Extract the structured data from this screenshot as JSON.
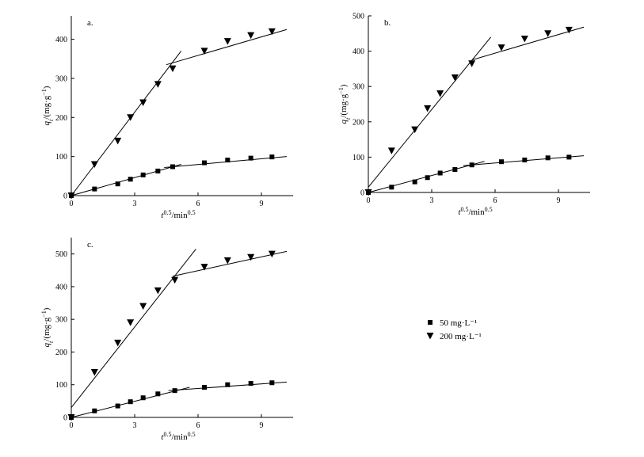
{
  "chart_data": [
    {
      "type": "scatter",
      "panel_label": "a.",
      "xlabel": {
        "main": "t",
        "sup": "0.5",
        "unit": "/min",
        "unit_sup": "0.5"
      },
      "ylabel": {
        "main": "q",
        "sub": "t",
        "unit": "/(mg·g",
        "unit_sup": "−1",
        "close": ")"
      },
      "xlim": [
        0,
        10.5
      ],
      "ylim": [
        0,
        460
      ],
      "xticks": [
        0,
        3,
        6,
        9
      ],
      "yticks": [
        0,
        100,
        200,
        300,
        400
      ],
      "series": [
        {
          "name": "50 mg·L⁻¹",
          "marker": "square",
          "x": [
            0,
            1.1,
            2.2,
            2.8,
            3.4,
            4.1,
            4.8,
            6.3,
            7.4,
            8.5,
            9.5
          ],
          "y": [
            0,
            17,
            30,
            42,
            53,
            63,
            74,
            84,
            91,
            96,
            99
          ],
          "fit_lines": [
            {
              "x": [
                0,
                5.2
              ],
              "y": [
                0,
                80
              ]
            },
            {
              "x": [
                4.4,
                10.2
              ],
              "y": [
                72,
                100
              ]
            }
          ]
        },
        {
          "name": "200 mg·L⁻¹",
          "marker": "triangle-down",
          "x": [
            0,
            1.1,
            2.2,
            2.8,
            3.4,
            4.1,
            4.8,
            6.3,
            7.4,
            8.5,
            9.5
          ],
          "y": [
            0,
            80,
            140,
            200,
            238,
            285,
            325,
            370,
            395,
            410,
            420
          ],
          "fit_lines": [
            {
              "x": [
                0,
                5.2
              ],
              "y": [
                0,
                370
              ]
            },
            {
              "x": [
                4.5,
                10.2
              ],
              "y": [
                335,
                425
              ]
            }
          ]
        }
      ]
    },
    {
      "type": "scatter",
      "panel_label": "b.",
      "xlabel": {
        "main": "t",
        "sup": "0.5",
        "unit": "/min",
        "unit_sup": "0.5"
      },
      "ylabel": {
        "main": "q",
        "sub": "t",
        "unit": "/(mg·g",
        "unit_sup": "−1",
        "close": ")"
      },
      "xlim": [
        0,
        10.5
      ],
      "ylim": [
        0,
        500
      ],
      "xticks": [
        0,
        3,
        6,
        9
      ],
      "yticks": [
        0,
        100,
        200,
        300,
        400,
        500
      ],
      "series": [
        {
          "name": "50 mg·L⁻¹",
          "marker": "square",
          "x": [
            0,
            1.1,
            2.2,
            2.8,
            3.4,
            4.1,
            4.9,
            6.3,
            7.4,
            8.5,
            9.5
          ],
          "y": [
            0,
            15,
            30,
            42,
            55,
            65,
            78,
            87,
            92,
            98,
            100
          ],
          "fit_lines": [
            {
              "x": [
                0,
                5.5
              ],
              "y": [
                0,
                88
              ]
            },
            {
              "x": [
                4.5,
                10.2
              ],
              "y": [
                76,
                104
              ]
            }
          ]
        },
        {
          "name": "200 mg·L⁻¹",
          "marker": "triangle-down",
          "x": [
            0,
            1.1,
            2.2,
            2.8,
            3.4,
            4.1,
            4.9,
            6.3,
            7.4,
            8.5,
            9.5
          ],
          "y": [
            0,
            118,
            178,
            238,
            280,
            325,
            365,
            410,
            435,
            450,
            460
          ],
          "fit_lines": [
            {
              "x": [
                0,
                5.8
              ],
              "y": [
                15,
                440
              ]
            },
            {
              "x": [
                4.9,
                10.2
              ],
              "y": [
                375,
                468
              ]
            }
          ]
        }
      ]
    },
    {
      "type": "scatter",
      "panel_label": "c.",
      "xlabel": {
        "main": "t",
        "sup": "0.5",
        "unit": "/min",
        "unit_sup": "0.5"
      },
      "ylabel": {
        "main": "q",
        "sub": "t",
        "unit": "/(mg·g",
        "unit_sup": "−1",
        "close": ")"
      },
      "xlim": [
        0,
        10.5
      ],
      "ylim": [
        0,
        550
      ],
      "xticks": [
        0,
        3,
        6,
        9
      ],
      "yticks": [
        0,
        100,
        200,
        300,
        400,
        500
      ],
      "series": [
        {
          "name": "50 mg·L⁻¹",
          "marker": "square",
          "x": [
            0,
            1.1,
            2.2,
            2.8,
            3.4,
            4.1,
            4.9,
            6.3,
            7.4,
            8.5,
            9.5
          ],
          "y": [
            0,
            20,
            35,
            48,
            60,
            72,
            82,
            92,
            100,
            104,
            106
          ],
          "fit_lines": [
            {
              "x": [
                0,
                5.6
              ],
              "y": [
                0,
                92
              ]
            },
            {
              "x": [
                4.6,
                10.2
              ],
              "y": [
                82,
                108
              ]
            }
          ]
        },
        {
          "name": "200 mg·L⁻¹",
          "marker": "triangle-down",
          "x": [
            0,
            1.1,
            2.2,
            2.8,
            3.4,
            4.1,
            4.9,
            6.3,
            7.4,
            8.5,
            9.5
          ],
          "y": [
            0,
            138,
            228,
            290,
            340,
            388,
            420,
            460,
            480,
            490,
            500
          ],
          "fit_lines": [
            {
              "x": [
                0,
                5.9
              ],
              "y": [
                30,
                515
              ]
            },
            {
              "x": [
                4.8,
                10.2
              ],
              "y": [
                432,
                508
              ]
            }
          ]
        }
      ]
    }
  ],
  "legend": {
    "position": "right",
    "items": [
      {
        "label": "50 mg·L⁻¹",
        "marker": "square"
      },
      {
        "label": "200 mg·L⁻¹",
        "marker": "triangle-down"
      }
    ]
  }
}
